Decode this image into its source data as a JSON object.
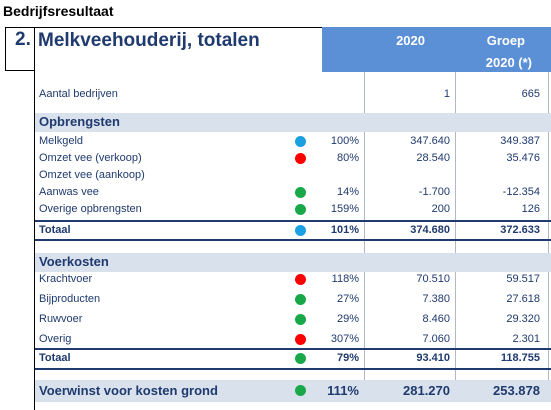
{
  "sheet_title": "Bedrijfsresultaat",
  "section_number": "2.",
  "main_title": "Melkveehouderij, totalen",
  "columns": {
    "year": "2020",
    "group": "Groep",
    "group_year": "2020 (*)"
  },
  "colors": {
    "blue": "#1ba1e2",
    "red": "#ff0000",
    "green": "#18a84a",
    "header_bg": "#5b8fd6",
    "band_bg": "#d9e1ec"
  },
  "aantal": {
    "label": "Aantal bedrijven",
    "v1": "1",
    "v2": "665"
  },
  "opbrengsten": {
    "heading": "Opbrengsten",
    "rows": [
      {
        "label": "Melkgeld",
        "dot": "blue",
        "pct": "100%",
        "v1": "347.640",
        "v2": "349.387"
      },
      {
        "label": "Omzet vee (verkoop)",
        "dot": "red",
        "pct": "80%",
        "v1": "28.540",
        "v2": "35.476"
      },
      {
        "label": "Omzet vee (aankoop)",
        "dot": "",
        "pct": "",
        "v1": "",
        "v2": ""
      },
      {
        "label": "Aanwas vee",
        "dot": "green",
        "pct": "14%",
        "v1": "-1.700",
        "v2": "-12.354"
      },
      {
        "label": "Overige opbrengsten",
        "dot": "green",
        "pct": "159%",
        "v1": "200",
        "v2": "126"
      }
    ],
    "total": {
      "label": "Totaal",
      "dot": "blue",
      "pct": "101%",
      "v1": "374.680",
      "v2": "372.633"
    }
  },
  "voerkosten": {
    "heading": "Voerkosten",
    "rows": [
      {
        "label": "Krachtvoer",
        "dot": "red",
        "pct": "118%",
        "v1": "70.510",
        "v2": "59.517"
      },
      {
        "label": "Bijproducten",
        "dot": "green",
        "pct": "27%",
        "v1": "7.380",
        "v2": "27.618"
      },
      {
        "label": "Ruwvoer",
        "dot": "green",
        "pct": "29%",
        "v1": "8.460",
        "v2": "29.320"
      },
      {
        "label": "Overig",
        "dot": "red",
        "pct": "307%",
        "v1": "7.060",
        "v2": "2.301"
      }
    ],
    "total": {
      "label": "Totaal",
      "dot": "green",
      "pct": "79%",
      "v1": "93.410",
      "v2": "118.755"
    }
  },
  "voerwinst": {
    "label": "Voerwinst voor kosten grond",
    "dot": "green",
    "pct": "111%",
    "v1": "281.270",
    "v2": "253.878"
  }
}
